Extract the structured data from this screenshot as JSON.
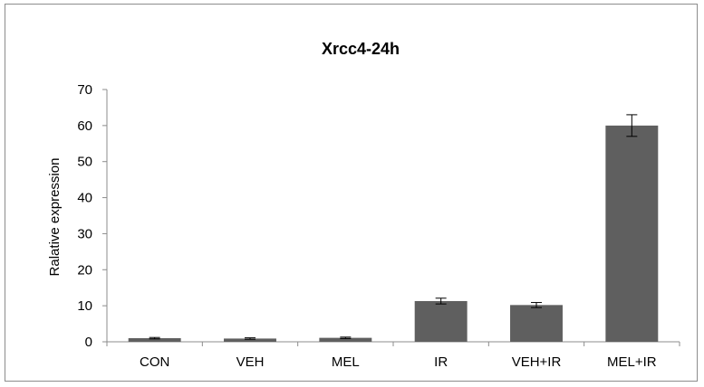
{
  "chart_data": {
    "type": "bar",
    "title": "Xrcc4-24h",
    "xlabel": "",
    "ylabel": "Ralative expression",
    "categories": [
      "CON",
      "VEH",
      "MEL",
      "IR",
      "VEH+IR",
      "MEL+IR"
    ],
    "values": [
      1.0,
      0.9,
      1.1,
      11.3,
      10.2,
      60.0
    ],
    "errors": [
      0.2,
      0.2,
      0.2,
      0.8,
      0.7,
      3.0
    ],
    "ylim": [
      0,
      70
    ],
    "yticks": [
      0,
      10,
      20,
      30,
      40,
      50,
      60,
      70
    ],
    "grid": false,
    "legend": "none",
    "colors": {
      "bar": "#5f5f5f",
      "axis": "#8c8c8c",
      "error_bar": "#000000"
    }
  }
}
